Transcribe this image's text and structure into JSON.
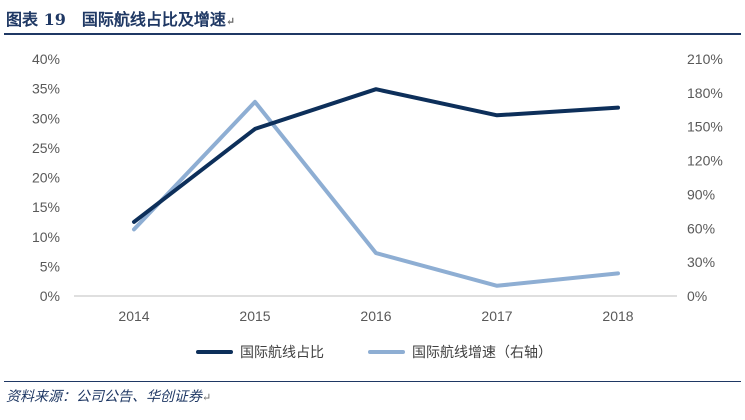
{
  "header": {
    "title": "图表 19　国际航线占比及增速"
  },
  "footer": {
    "source": "资料来源：公司公告、华创证券"
  },
  "chart_data": {
    "type": "line",
    "title": "图表 19　国际航线占比及增速",
    "x": [
      "2014",
      "2015",
      "2016",
      "2017",
      "2018"
    ],
    "y_left": {
      "ticks": [
        "0%",
        "5%",
        "10%",
        "15%",
        "20%",
        "25%",
        "30%",
        "35%",
        "40%"
      ],
      "range": [
        0,
        0.4
      ]
    },
    "y_right": {
      "ticks": [
        "0%",
        "30%",
        "60%",
        "90%",
        "120%",
        "150%",
        "180%",
        "210%"
      ],
      "range": [
        0,
        2.1
      ]
    },
    "series": [
      {
        "name": "国际航线占比",
        "axis": "left",
        "color": "#0d2f5a",
        "values": [
          0.125,
          0.282,
          0.349,
          0.305,
          0.318
        ]
      },
      {
        "name": "国际航线增速（右轴）",
        "axis": "right",
        "color": "#8eaed3",
        "values": [
          0.59,
          1.72,
          0.38,
          0.09,
          0.2
        ]
      }
    ],
    "grid": false,
    "legend_position": "bottom"
  }
}
